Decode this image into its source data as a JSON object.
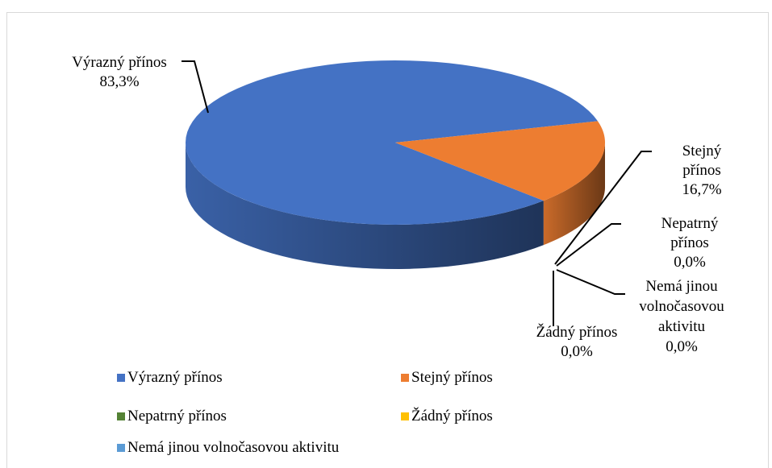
{
  "chart_data": {
    "type": "pie3d",
    "categories": [
      "Výrazný přínos",
      "Stejný přínos",
      "Nepatrný přínos",
      "Žádný přínos",
      "Nemá jinou volnočasovou aktivitu"
    ],
    "values": [
      83.3,
      16.7,
      0,
      0,
      0
    ],
    "value_labels": [
      "83,3%",
      "16,7%",
      "0,0%",
      "0,0%",
      "0,0%"
    ],
    "colors": [
      "#4472c4",
      "#ed7d31",
      "#548235",
      "#ffc000",
      "#5b9bd5"
    ],
    "legend": "bottom"
  }
}
